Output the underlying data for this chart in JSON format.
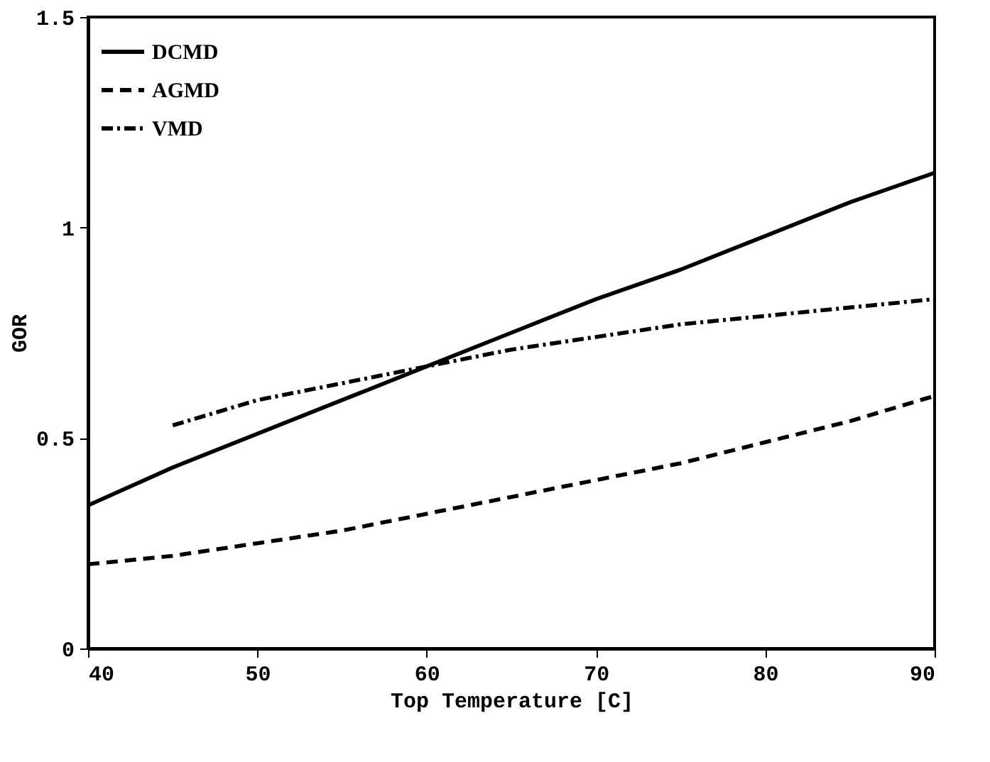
{
  "chart_data": {
    "type": "line",
    "xlabel": "Top Temperature [C]",
    "ylabel": "GOR",
    "xlim": [
      40,
      90
    ],
    "xticks": [
      40,
      50,
      60,
      70,
      80,
      90
    ],
    "ylim": [
      0,
      1.5
    ],
    "yticks": [
      0,
      0.5,
      1,
      1.5
    ],
    "grid": false,
    "legend": "top left",
    "series": [
      {
        "name": "DCMD",
        "color": "#000000",
        "line_style": "solid",
        "x": [
          40,
          45,
          50,
          55,
          60,
          65,
          70,
          75,
          80,
          85,
          90
        ],
        "values": [
          0.34,
          0.43,
          0.51,
          0.59,
          0.67,
          0.75,
          0.83,
          0.9,
          0.98,
          1.06,
          1.13
        ]
      },
      {
        "name": "AGMD",
        "color": "#000000",
        "line_style": "dashed",
        "x": [
          40,
          45,
          50,
          55,
          60,
          65,
          70,
          75,
          80,
          85,
          90
        ],
        "values": [
          0.2,
          0.22,
          0.25,
          0.28,
          0.32,
          0.36,
          0.4,
          0.44,
          0.49,
          0.54,
          0.6
        ]
      },
      {
        "name": "VMD",
        "color": "#000000",
        "line_style": "dotted",
        "x": [
          45,
          50,
          55,
          60,
          65,
          70,
          75,
          80,
          85,
          90
        ],
        "values": [
          0.53,
          0.59,
          0.63,
          0.67,
          0.71,
          0.74,
          0.77,
          0.79,
          0.81,
          0.83
        ]
      }
    ]
  }
}
